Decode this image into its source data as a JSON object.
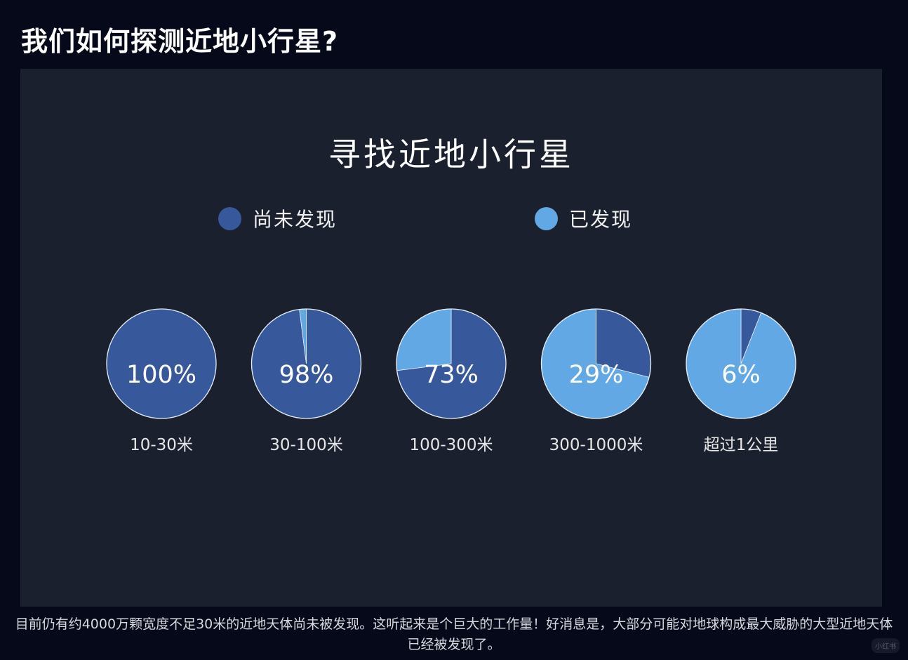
{
  "page": {
    "title": "我们如何探测近地小行星?",
    "caption": "目前仍有约4000万颗宽度不足30米的近地天体尚未被发现。这听起来是个巨大的工作量！好消息是，大部分可能对地球构成最大威胁的大型近地天体已经被发现了。",
    "watermark": "小红书"
  },
  "colors": {
    "page_background": "#05091a",
    "panel_background": "#1b202e",
    "undiscovered": "#37599b",
    "discovered": "#62a8e4",
    "pie_border": "#e8eef7"
  },
  "chart_data": {
    "type": "pie",
    "title": "寻找近地小行星",
    "legend": [
      {
        "label": "尚未发现",
        "color": "#37599b"
      },
      {
        "label": "已发现",
        "color": "#62a8e4"
      }
    ],
    "legend_position": "top",
    "pies": [
      {
        "category": "10-30米",
        "undiscovered_pct": 100,
        "discovered_pct": 0,
        "label": "100%"
      },
      {
        "category": "30-100米",
        "undiscovered_pct": 98,
        "discovered_pct": 2,
        "label": "98%"
      },
      {
        "category": "100-300米",
        "undiscovered_pct": 73,
        "discovered_pct": 27,
        "label": "73%"
      },
      {
        "category": "300-1000米",
        "undiscovered_pct": 29,
        "discovered_pct": 71,
        "label": "29%"
      },
      {
        "category": "超过1公里",
        "undiscovered_pct": 6,
        "discovered_pct": 94,
        "label": "6%"
      }
    ]
  }
}
